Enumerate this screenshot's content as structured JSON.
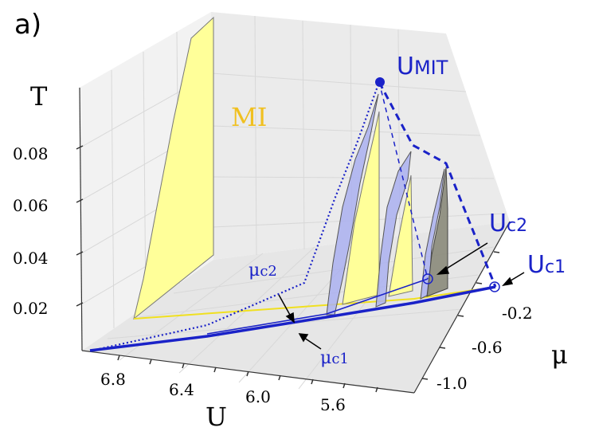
{
  "chart_data": {
    "type": "3d-surface",
    "panel_label": "a)",
    "axes": {
      "x": {
        "label": "U",
        "ticks": [
          "6.8",
          "6.4",
          "6.0",
          "5.6"
        ]
      },
      "y": {
        "label": "μ",
        "ticks": [
          "-0.2",
          "-0.6",
          "-1.0"
        ]
      },
      "z": {
        "label": "T",
        "ticks": [
          "0.02",
          "0.04",
          "0.06",
          "0.08"
        ]
      }
    },
    "annotations": {
      "mi": "MI",
      "umit_main": "U",
      "umit_sub": "MIT",
      "uc2_main": "U",
      "uc2_sub": "c2",
      "uc1_main": "U",
      "uc1_sub": "c1",
      "muc2_main": "μ",
      "muc2_sub": "c2",
      "muc1_main": "μ",
      "muc1_sub": "c1"
    },
    "colors": {
      "pane": "#f2f2f2",
      "mi_region": "#ffff99",
      "coexistence_band": "#aab0f0",
      "dark_band": "#8a8a7a",
      "blue_line": "#1a22c8",
      "yellow_line": "#f0e020",
      "mi_label": "#f0c020"
    }
  }
}
